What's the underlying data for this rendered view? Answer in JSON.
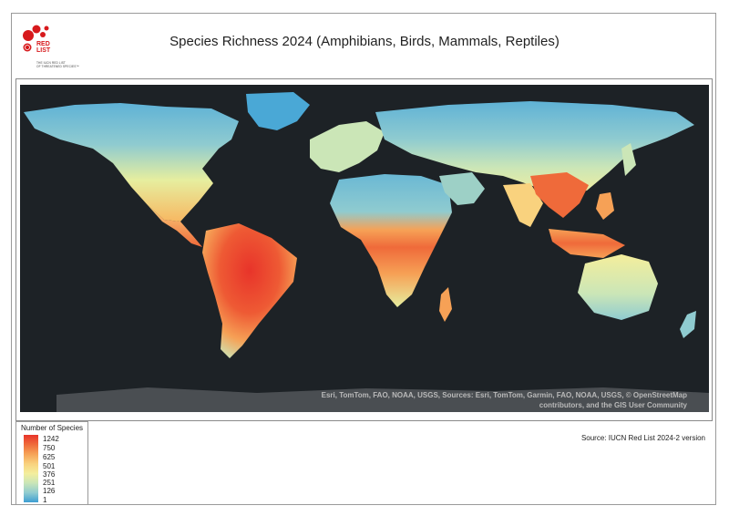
{
  "header": {
    "title": "Species Richness 2024 (Amphibians, Birds, Mammals, Reptiles)",
    "logo": {
      "wordmark_top": "RED",
      "wordmark_bottom": "LIST",
      "tagline_line1": "THE IUCN RED LIST",
      "tagline_line2": "OF THREATENED SPECIES™"
    }
  },
  "map": {
    "attribution_line1": "Esri, TomTom, FAO, NOAA, USGS, Sources: Esri, TomTom, Garmin, FAO, NOAA, USGS, © OpenStreetMap",
    "attribution_line2": "contributors, and the GIS User Community",
    "colors": {
      "ocean": "#1d2226",
      "antarctica": "#4a4e52",
      "low": "#3d9ed2",
      "high": "#e8342a"
    }
  },
  "legend": {
    "title": "Number of Species",
    "labels": [
      "1242",
      "750",
      "625",
      "501",
      "376",
      "251",
      "126",
      "1"
    ]
  },
  "footer": {
    "source": "Source: IUCN Red List 2024-2 version"
  }
}
